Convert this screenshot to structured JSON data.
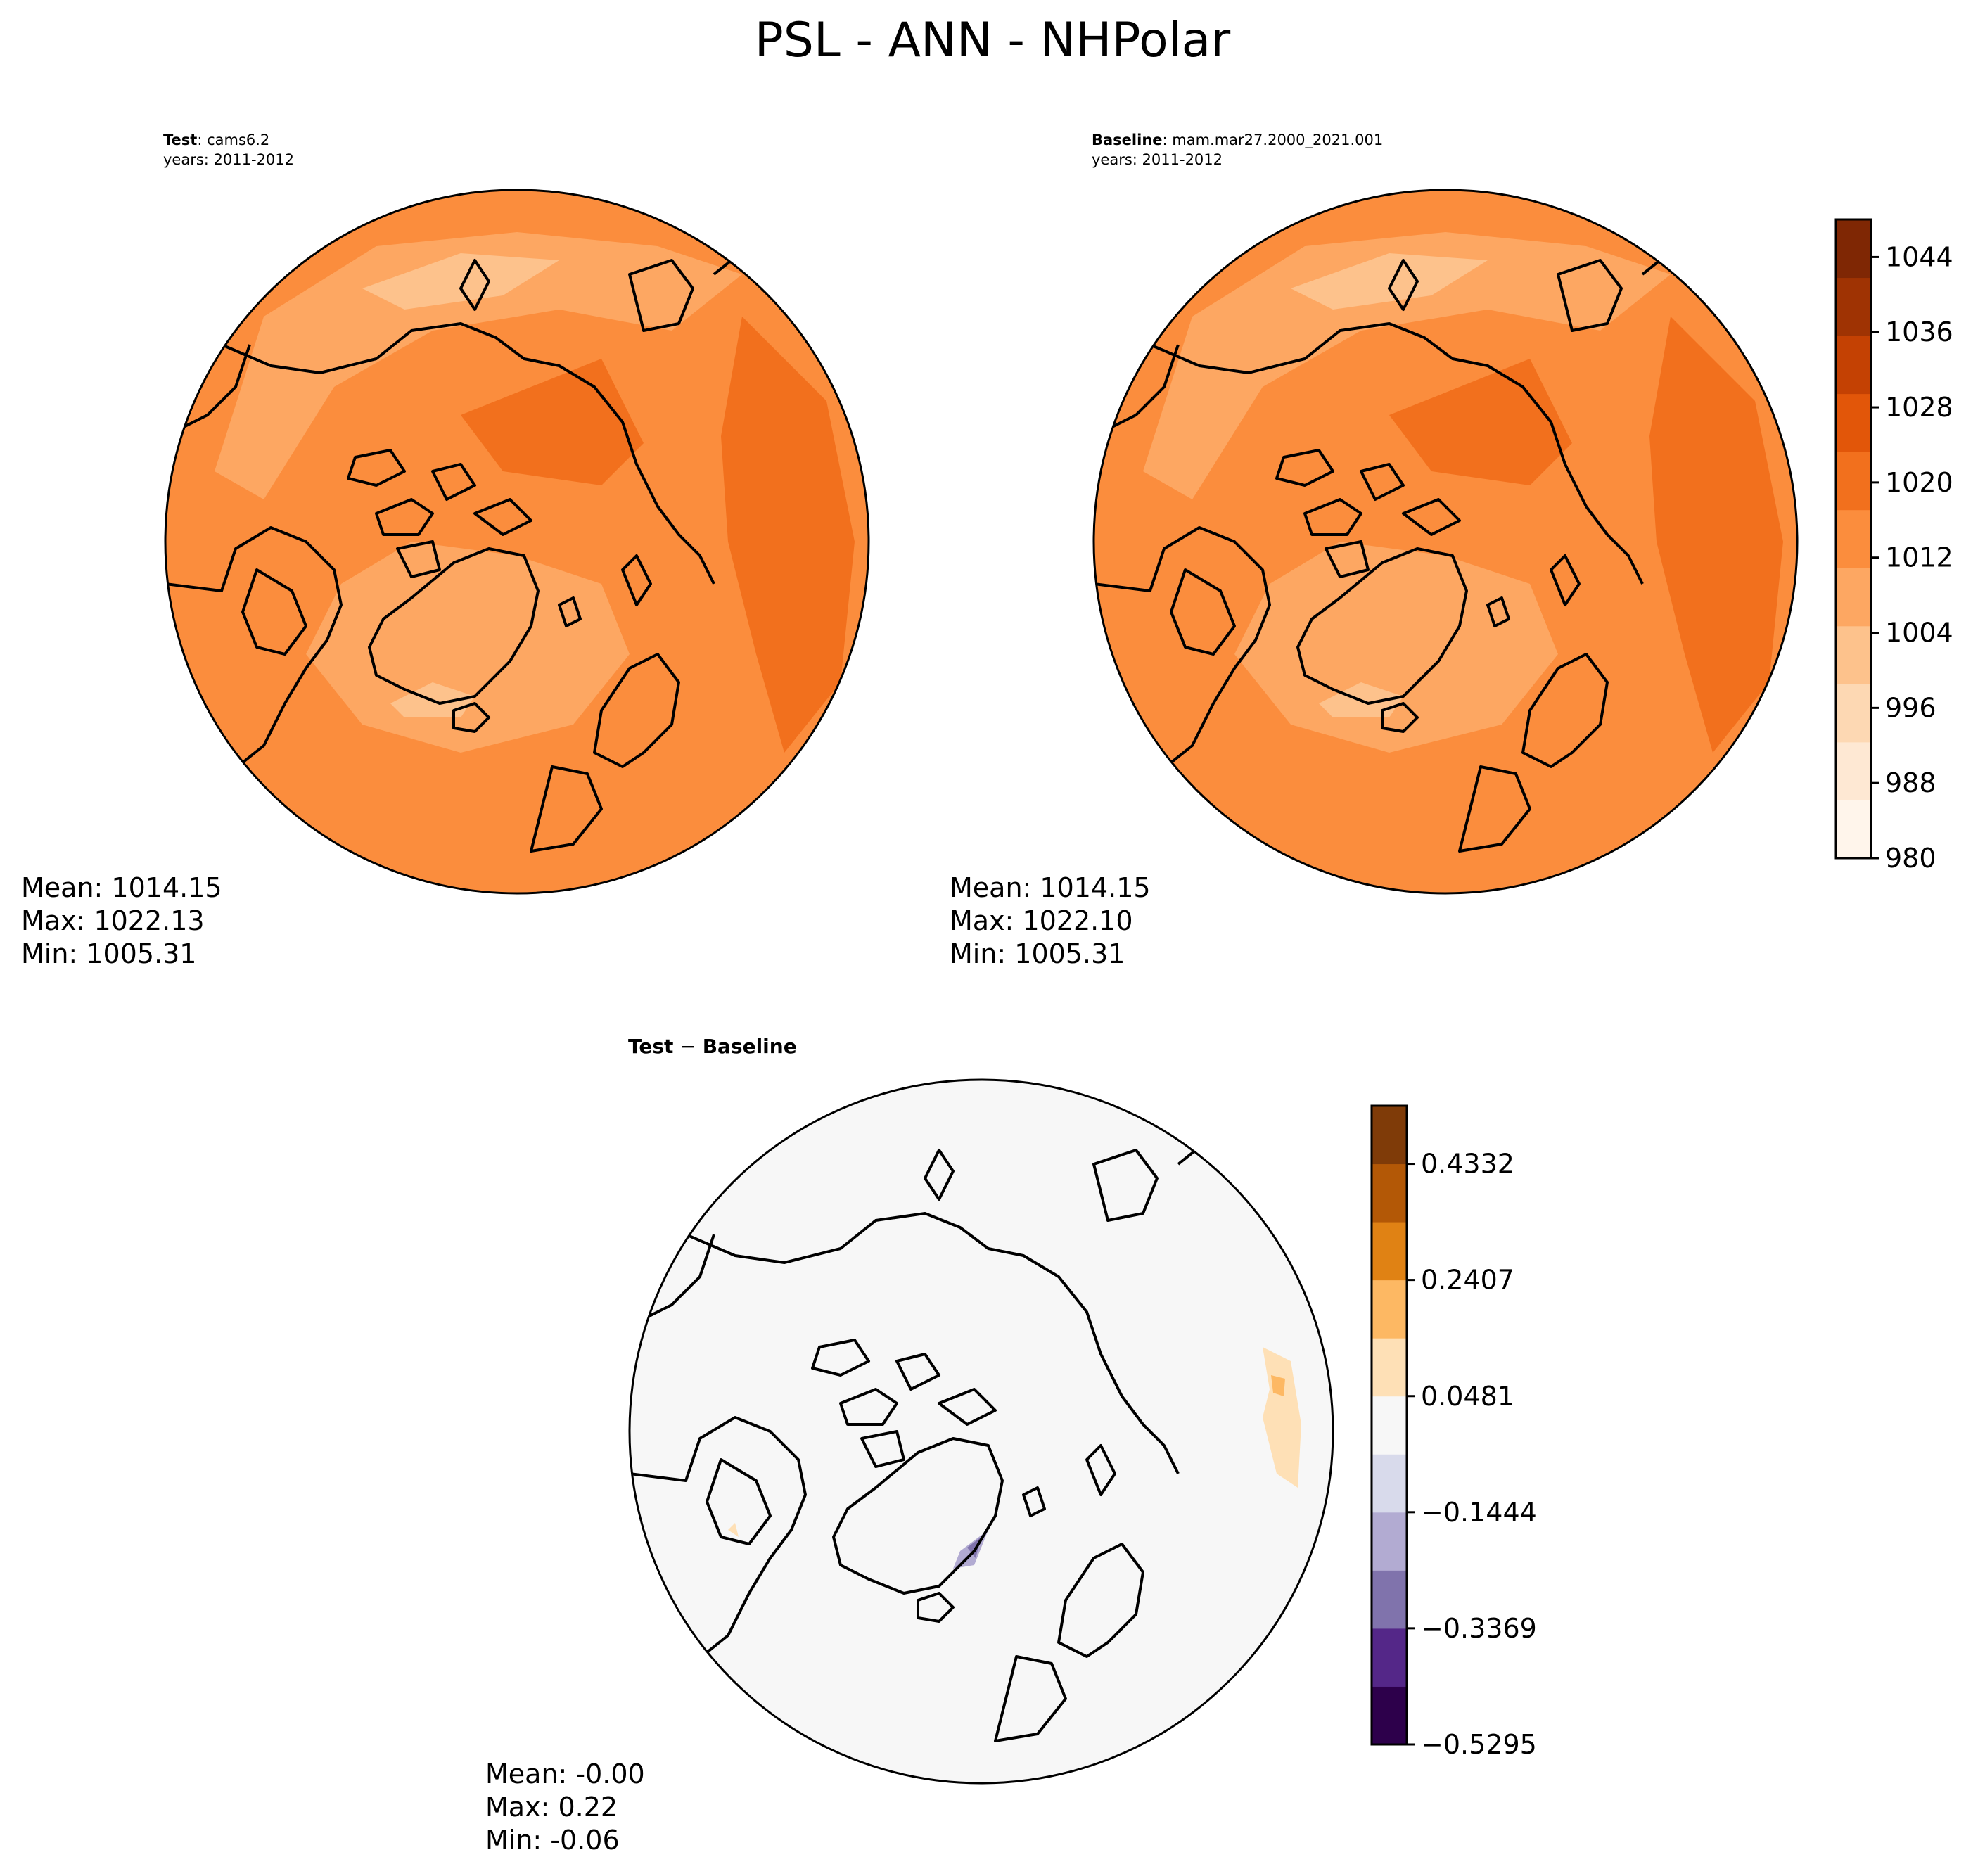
{
  "figure_title": "PSL - ANN - NHPolar",
  "panels": {
    "test": {
      "name_bold": "Test",
      "name_rest": ": cams6.2",
      "years": "years: 2011-2012",
      "stats": {
        "mean": "Mean: 1014.15",
        "max": "Max: 1022.13",
        "min": "Min: 1005.31"
      }
    },
    "baseline": {
      "name_bold": "Baseline",
      "name_rest": ": mam.mar27.2000_2021.001",
      "years": "years: 2011-2012",
      "stats": {
        "mean": "Mean: 1014.15",
        "max": "Max: 1022.10",
        "min": "Min: 1005.31"
      }
    },
    "diff": {
      "title_a": "Test",
      "title_op": " − ",
      "title_b": "Baseline",
      "stats": {
        "mean": "Mean: -0.00",
        "max": "Max:  0.22",
        "min": "Min: -0.06"
      }
    }
  },
  "colorbars": {
    "psl": {
      "min": 980,
      "max": 1048,
      "tick_values": [
        980,
        988,
        996,
        1004,
        1012,
        1020,
        1028,
        1036,
        1044
      ],
      "tick_labels": [
        "980",
        "988",
        "996",
        "1004",
        "1012",
        "1020",
        "1028",
        "1036",
        "1044"
      ],
      "colors": [
        "#fff5eb",
        "#fee8d3",
        "#fdd8b3",
        "#fdc28c",
        "#fda762",
        "#fb8d3d",
        "#f2701d",
        "#e25609",
        "#c44103",
        "#9f3303",
        "#7f2704"
      ]
    },
    "diff": {
      "min": -0.5295,
      "max": 0.5295,
      "tick_values": [
        -0.5295,
        -0.3369,
        -0.1444,
        0.0481,
        0.2407,
        0.4332
      ],
      "tick_labels": [
        "−0.5295",
        "−0.3369",
        "−0.1444",
        "0.0481",
        "0.2407",
        "0.4332"
      ],
      "colors": [
        "#2d004b",
        "#542788",
        "#8073ac",
        "#b2abd2",
        "#d8daeb",
        "#f7f7f7",
        "#fee0b6",
        "#fdb863",
        "#e08214",
        "#b35806",
        "#7f3b08"
      ]
    }
  }
}
